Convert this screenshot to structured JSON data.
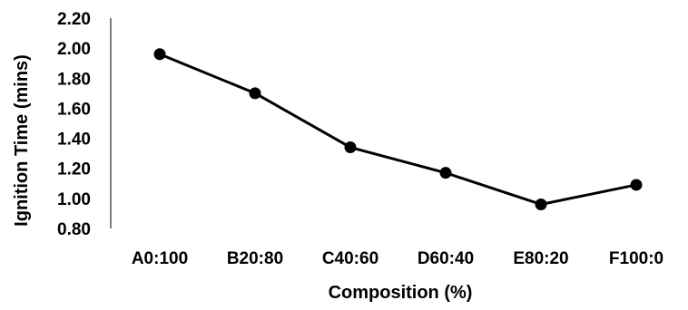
{
  "chart_data": {
    "type": "line",
    "categories": [
      "A0:100",
      "B20:80",
      "C40:60",
      "D60:40",
      "E80:20",
      "F100:0"
    ],
    "series": [
      {
        "values": [
          1.96,
          1.7,
          1.34,
          1.17,
          0.96,
          1.09
        ]
      }
    ],
    "xlabel": "Composition (%)",
    "ylabel": "Ignition Time (mins)",
    "ylim": [
      0.8,
      2.2
    ],
    "yticks": [
      "0.80",
      "1.00",
      "1.20",
      "1.40",
      "1.60",
      "1.80",
      "2.00",
      "2.20"
    ],
    "grid": false,
    "legend": "none",
    "colors": {
      "line": "#000000",
      "marker": "#000000",
      "axis": "#000000"
    }
  }
}
